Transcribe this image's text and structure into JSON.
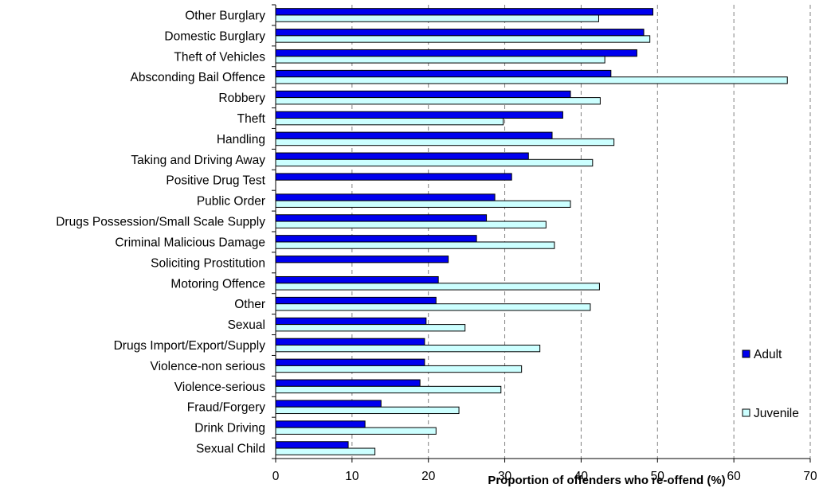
{
  "chart_data": {
    "type": "bar",
    "orientation": "horizontal",
    "title": "",
    "xlabel": "Proportion of offenders who re-offend (%)",
    "ylabel": "",
    "xlim": [
      0,
      70
    ],
    "xticks": [
      0,
      10,
      20,
      30,
      40,
      50,
      60,
      70
    ],
    "grid": "vertical dashed",
    "legend_position": "right",
    "categories": [
      "Other Burglary",
      "Domestic Burglary",
      "Theft of Vehicles",
      "Absconding Bail Offence",
      "Robbery",
      "Theft",
      "Handling",
      "Taking and Driving Away",
      "Positive Drug Test",
      "Public Order",
      "Drugs Possession/Small Scale Supply",
      "Criminal Malicious Damage",
      "Soliciting Prostitution",
      "Motoring Offence",
      "Other",
      "Sexual",
      "Drugs Import/Export/Supply",
      "Violence-non serious",
      "Violence-serious",
      "Fraud/Forgery",
      "Drink Driving",
      "Sexual Child"
    ],
    "series": [
      {
        "name": "Adult",
        "color": "#0000ee",
        "values": [
          49.4,
          48.2,
          47.3,
          43.9,
          38.6,
          37.6,
          36.2,
          33.1,
          30.9,
          28.7,
          27.6,
          26.3,
          22.6,
          21.3,
          21.0,
          19.7,
          19.5,
          19.5,
          18.9,
          13.8,
          11.7,
          9.5
        ]
      },
      {
        "name": "Juvenile",
        "color": "#ccffff",
        "values": [
          42.3,
          49.0,
          43.1,
          67.0,
          42.5,
          29.8,
          44.3,
          41.5,
          null,
          38.6,
          35.4,
          36.5,
          null,
          42.4,
          41.2,
          24.8,
          34.6,
          32.2,
          29.5,
          24.0,
          21.0,
          13.0
        ]
      }
    ]
  }
}
